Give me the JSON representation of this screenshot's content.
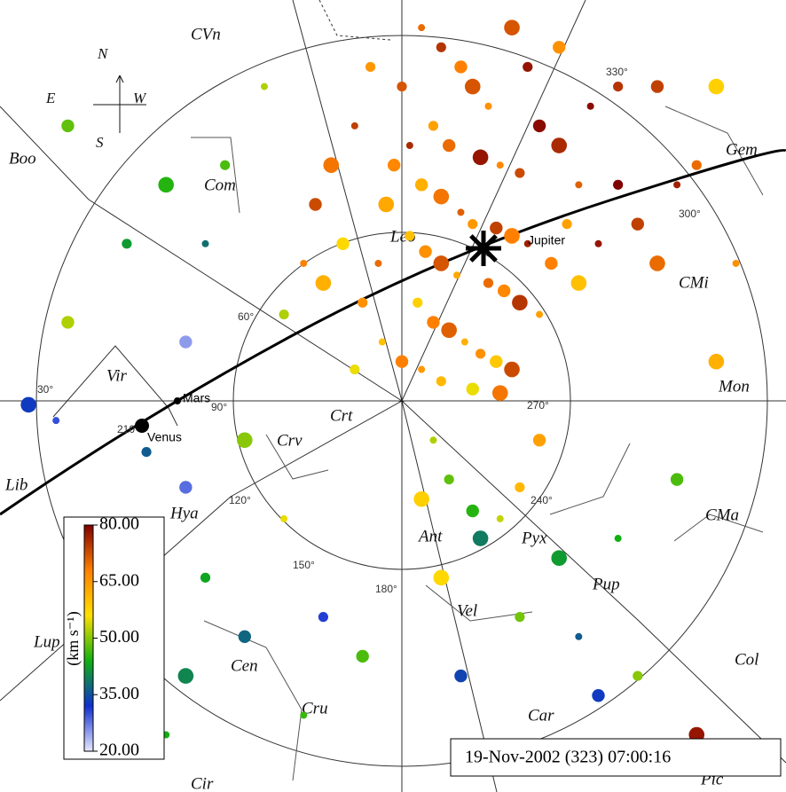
{
  "chart_data": {
    "type": "scatter",
    "date_label": "19-Nov-2002 (323) 07:00:16",
    "xlim": [
      -1,
      1
    ],
    "ylim": [
      -1,
      1
    ],
    "compass": [
      "N",
      "E",
      "W",
      "S"
    ],
    "planets": [
      "Jupiter",
      "Mars",
      "Venus"
    ],
    "constellations": [
      "CVn",
      "Com",
      "Boo",
      "Gem",
      "CMi",
      "Leo",
      "Vir",
      "Crt",
      "Crv",
      "Hya",
      "Ant",
      "Pyx",
      "Pup",
      "CMa",
      "Mon",
      "Cen",
      "Vel",
      "Col",
      "Lup",
      "Cru",
      "Car",
      "Pic",
      "Cir",
      "Lib"
    ],
    "degree_labels": [
      "30°",
      "60°",
      "90°",
      "120°",
      "150°",
      "180°",
      "210°",
      "240°",
      "270°",
      "300°",
      "330°"
    ],
    "colorbar": {
      "label": "(km s⁻¹)",
      "lim": [
        20,
        80
      ],
      "ticks": [
        {
          "value": 20,
          "label": "20.00"
        },
        {
          "value": 35,
          "label": "35.00"
        },
        {
          "value": 50,
          "label": "50.00"
        },
        {
          "value": 65,
          "label": "65.00"
        },
        {
          "value": 80,
          "label": "80.00"
        }
      ],
      "colors": [
        "#e8e8ff",
        "#1030d0",
        "#10b010",
        "#ffe000",
        "#ff8000",
        "#800000"
      ]
    },
    "points": {
      "x": [
        0.05,
        0.1,
        0.15,
        0.18,
        0.22,
        0.08,
        0.12,
        0.2,
        0.25,
        0.3,
        0.05,
        0.1,
        0.15,
        0.18,
        0.24,
        0.28,
        0.32,
        0.02,
        0.06,
        0.1,
        0.14,
        0.22,
        0.26,
        0.3,
        0.35,
        0.04,
        0.08,
        0.12,
        0.16,
        0.2,
        0.24,
        0.28,
        0.05,
        0.1,
        0.18,
        0.25,
        0.02,
        0.0,
        -0.02,
        -0.04,
        -0.06,
        -0.1,
        -0.15,
        -0.2,
        -0.25,
        -0.3,
        -0.22,
        -0.18,
        -0.12,
        -0.08,
        0.35,
        0.4,
        0.45,
        0.42,
        0.38,
        0.45,
        0.5,
        0.55,
        0.6,
        0.65,
        0.7,
        0.32,
        0.4,
        0.28,
        0.48,
        0.55,
        -0.85,
        -0.6,
        -0.5,
        -0.7,
        -0.85,
        -0.95,
        -0.88,
        -0.65,
        -0.55,
        -0.4,
        -0.3,
        -0.5,
        -0.4,
        -0.55,
        -0.25,
        -0.2,
        -0.1,
        0.05,
        0.08,
        0.12,
        0.18,
        0.2,
        0.25,
        0.3,
        0.35,
        0.4,
        0.45,
        0.3,
        0.15,
        0.1,
        0.55,
        0.6,
        0.7,
        0.8,
        0.85,
        0.75,
        0.65,
        0.8,
        -0.35,
        -0.45,
        -0.55,
        -0.75,
        -0.6,
        0.2,
        0.5,
        0.75,
        -0.05,
        -0.12,
        0.0
      ],
      "y": [
        0.95,
        0.9,
        0.85,
        0.8,
        0.75,
        0.7,
        0.65,
        0.62,
        0.6,
        0.58,
        0.55,
        0.52,
        0.48,
        0.45,
        0.44,
        0.42,
        0.4,
        0.42,
        0.38,
        0.35,
        0.32,
        0.3,
        0.28,
        0.25,
        0.22,
        0.25,
        0.2,
        0.18,
        0.15,
        0.12,
        0.1,
        0.08,
        0.08,
        0.05,
        0.03,
        0.02,
        0.65,
        0.8,
        0.6,
        0.5,
        0.35,
        0.25,
        0.4,
        0.3,
        0.35,
        0.22,
        0.5,
        0.6,
        0.7,
        0.85,
        0.7,
        0.65,
        0.55,
        0.45,
        0.35,
        0.3,
        0.4,
        0.55,
        0.45,
        0.35,
        0.55,
        0.85,
        0.9,
        0.95,
        0.75,
        0.8,
        0.7,
        0.55,
        0.4,
        0.4,
        0.2,
        -0.01,
        -0.05,
        -0.13,
        -0.22,
        -0.1,
        -0.3,
        -0.45,
        -0.6,
        -0.7,
        -0.8,
        -0.55,
        -0.65,
        -0.25,
        -0.1,
        -0.2,
        -0.28,
        -0.35,
        -0.3,
        -0.22,
        -0.1,
        -0.4,
        -0.6,
        -0.55,
        -0.7,
        -0.45,
        -0.35,
        -0.7,
        -0.2,
        0.1,
        0.35,
        0.6,
        0.8,
        0.8,
        0.8,
        0.6,
        0.15,
        -0.4,
        -0.85,
        -0.9,
        -0.75,
        -0.85,
        0.15,
        0.08,
        0.1
      ],
      "values": [
        70,
        75,
        68,
        72,
        66,
        64,
        70,
        78,
        67,
        73,
        62,
        69,
        71,
        65,
        74,
        68,
        77,
        60,
        66,
        72,
        63,
        70,
        67,
        75,
        64,
        58,
        68,
        71,
        62,
        66,
        59,
        73,
        65,
        61,
        55,
        69,
        76,
        72,
        67,
        63,
        70,
        66,
        57,
        62,
        68,
        52,
        73,
        69,
        74,
        65,
        79,
        76,
        71,
        64,
        68,
        60,
        78,
        80,
        74,
        70,
        77,
        78,
        66,
        72,
        79,
        75,
        48,
        45,
        38,
        42,
        52,
        33,
        30,
        36,
        28,
        50,
        55,
        43,
        37,
        40,
        46,
        31,
        47,
        58,
        52,
        48,
        45,
        39,
        53,
        61,
        64,
        42,
        36,
        49,
        34,
        57,
        44,
        50,
        47,
        62,
        66,
        70,
        74,
        58,
        52,
        47,
        25,
        29,
        44,
        46,
        33,
        78,
        60,
        55,
        68
      ]
    }
  }
}
